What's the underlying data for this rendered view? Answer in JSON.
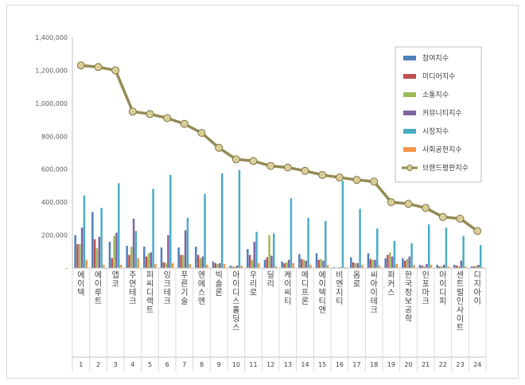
{
  "chart_data": {
    "type": "bar",
    "title": "",
    "xlabel": "",
    "ylabel": "",
    "ylim": [
      0,
      1400000
    ],
    "yticks": [
      "1,400,000",
      "1,200,000",
      "1,000,000",
      "800,000",
      "600,000",
      "400,000",
      "200,000",
      "-"
    ],
    "categories": [
      "에이텍",
      "에이루트",
      "앱코",
      "주연테크",
      "피씨디렉트",
      "잉크테크",
      "푸른기술",
      "엔에스엔",
      "빅솔론",
      "아이디스홀딩스",
      "우리로",
      "딜리",
      "케이씨티",
      "메디프론",
      "에이텍티앤",
      "비엔지티",
      "옴로",
      "씨아이테크",
      "파커스",
      "한국정보공학",
      "인포마크",
      "아이디피",
      "센트럴인사이트",
      "디지아이"
    ],
    "ranks": [
      "1",
      "2",
      "3",
      "4",
      "5",
      "6",
      "7",
      "8",
      "9",
      "10",
      "11",
      "12",
      "13",
      "14",
      "15",
      "16",
      "17",
      "18",
      "19",
      "20",
      "21",
      "22",
      "23",
      "24"
    ],
    "series": [
      {
        "name": "참여지수",
        "color": "#4f81bd",
        "values": [
          200000,
          340000,
          160000,
          135000,
          130000,
          125000,
          125000,
          130000,
          40000,
          15000,
          115000,
          50000,
          40000,
          85000,
          90000,
          5000,
          65000,
          90000,
          60000,
          60000,
          20000,
          20000,
          20000,
          10000
        ]
      },
      {
        "name": "미디어지수",
        "color": "#c0504d",
        "values": [
          145000,
          175000,
          60000,
          80000,
          70000,
          35000,
          80000,
          80000,
          30000,
          8000,
          80000,
          65000,
          30000,
          55000,
          50000,
          3000,
          35000,
          55000,
          80000,
          45000,
          15000,
          10000,
          15000,
          10000
        ]
      },
      {
        "name": "소통지수",
        "color": "#9bbb59",
        "values": [
          145000,
          120000,
          195000,
          130000,
          90000,
          30000,
          80000,
          60000,
          25000,
          8000,
          50000,
          200000,
          35000,
          50000,
          55000,
          3000,
          30000,
          50000,
          95000,
          55000,
          10000,
          10000,
          10000,
          15000
        ]
      },
      {
        "name": "커뮤니티지수",
        "color": "#8064a2",
        "values": [
          245000,
          190000,
          215000,
          300000,
          95000,
          200000,
          230000,
          70000,
          30000,
          15000,
          160000,
          75000,
          50000,
          45000,
          45000,
          5000,
          30000,
          50000,
          70000,
          70000,
          25000,
          20000,
          45000,
          20000
        ]
      },
      {
        "name": "시장지수",
        "color": "#4bacc6",
        "values": [
          440000,
          365000,
          515000,
          225000,
          480000,
          565000,
          305000,
          450000,
          575000,
          595000,
          220000,
          210000,
          425000,
          305000,
          285000,
          530000,
          360000,
          240000,
          165000,
          150000,
          265000,
          245000,
          195000,
          140000
        ]
      },
      {
        "name": "사회공헌지수",
        "color": "#f79646",
        "values": [
          50000,
          20000,
          20000,
          60000,
          25000,
          30000,
          25000,
          20000,
          25000,
          15000,
          30000,
          10000,
          30000,
          20000,
          20000,
          5000,
          20000,
          15000,
          25000,
          20000,
          20000,
          10000,
          10000,
          5000
        ]
      }
    ],
    "line": {
      "name": "브랜드평판지수",
      "color": "#948a54",
      "values": [
        1230000,
        1220000,
        1200000,
        950000,
        935000,
        910000,
        875000,
        820000,
        730000,
        660000,
        650000,
        620000,
        610000,
        590000,
        565000,
        550000,
        535000,
        525000,
        400000,
        390000,
        365000,
        310000,
        300000,
        225000
      ]
    },
    "legend_position": "top-right",
    "grid": false
  }
}
